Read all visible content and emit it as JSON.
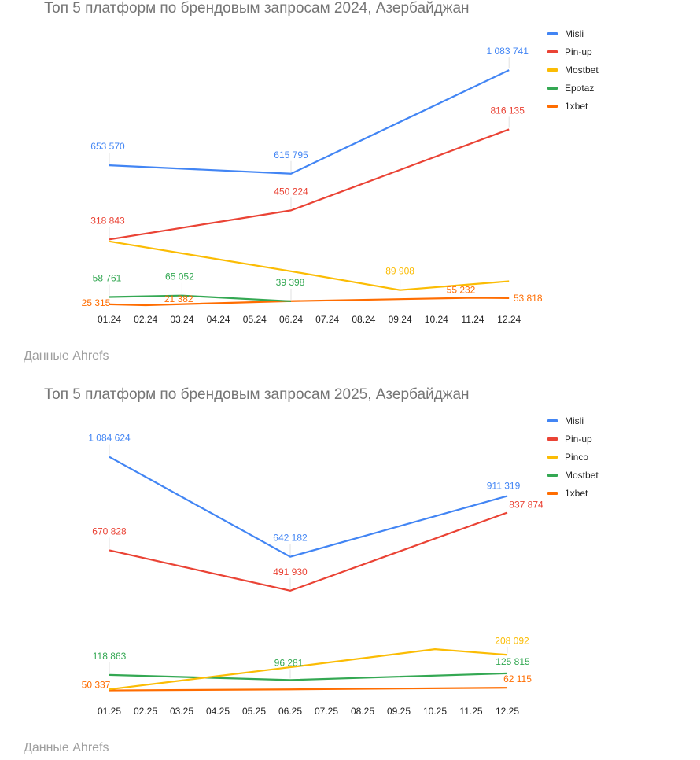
{
  "charts": [
    {
      "title": "Топ 5 платформ по брендовым запросам 2024, Азербайджан",
      "source": "Данные Ahrefs",
      "legend": [
        {
          "label": "Misli",
          "color": "#4285f4"
        },
        {
          "label": "Pin-up",
          "color": "#ea4335"
        },
        {
          "label": "Mostbet",
          "color": "#fbbc04"
        },
        {
          "label": "Epotaz",
          "color": "#34a853"
        },
        {
          "label": "1xbet",
          "color": "#ff6d01"
        }
      ],
      "x_ticks": [
        "01.24",
        "02.24",
        "03.24",
        "04.24",
        "05.24",
        "06.24",
        "07.24",
        "08.24",
        "09.24",
        "10.24",
        "11.24",
        "12.24"
      ]
    },
    {
      "title": "Топ 5 платформ по брендовым запросам 2025, Азербайджан",
      "source": "Данные Ahrefs",
      "legend": [
        {
          "label": "Misli",
          "color": "#4285f4"
        },
        {
          "label": "Pin-up",
          "color": "#ea4335"
        },
        {
          "label": "Pinco",
          "color": "#fbbc04"
        },
        {
          "label": "Mostbet",
          "color": "#34a853"
        },
        {
          "label": "1xbet",
          "color": "#ff6d01"
        }
      ],
      "x_ticks": [
        "01.25",
        "02.25",
        "03.25",
        "04.25",
        "05.25",
        "06.25",
        "07.25",
        "08.25",
        "09.25",
        "10.25",
        "11.25",
        "12.25"
      ]
    }
  ],
  "chart_data": [
    {
      "type": "line",
      "title": "Топ 5 платформ по брендовым запросам 2024, Азербайджан",
      "xlabel": "",
      "ylabel": "",
      "categories": [
        "01.24",
        "02.24",
        "03.24",
        "04.24",
        "05.24",
        "06.24",
        "07.24",
        "08.24",
        "09.24",
        "10.24",
        "11.24",
        "12.24"
      ],
      "grid": false,
      "legend_position": "right-top",
      "ylim": [
        0,
        1100000
      ],
      "series": [
        {
          "name": "Misli",
          "color": "#4285f4",
          "points": [
            [
              0,
              653570
            ],
            [
              5,
              615795
            ],
            [
              11,
              1083741
            ]
          ],
          "labels": [
            [
              0,
              "653 570"
            ],
            [
              5,
              "615 795"
            ],
            [
              11,
              "1 083 741"
            ]
          ]
        },
        {
          "name": "Pin-up",
          "color": "#ea4335",
          "points": [
            [
              0,
              318843
            ],
            [
              5,
              450224
            ],
            [
              11,
              816135
            ]
          ],
          "labels": [
            [
              0,
              "318 843"
            ],
            [
              5,
              "450 224"
            ],
            [
              11,
              "816 135"
            ]
          ]
        },
        {
          "name": "Mostbet",
          "color": "#fbbc04",
          "points": [
            [
              0,
              310000
            ],
            [
              5,
              175000
            ],
            [
              8,
              89908
            ],
            [
              11,
              130000
            ]
          ],
          "labels": [
            [
              8,
              "89 908"
            ]
          ]
        },
        {
          "name": "Epotaz",
          "color": "#34a853",
          "points": [
            [
              0,
              58761
            ],
            [
              2,
              65052
            ],
            [
              5,
              39398
            ]
          ],
          "labels": [
            [
              0,
              "58 761"
            ],
            [
              2,
              "65 052"
            ],
            [
              5,
              "39 398"
            ]
          ]
        },
        {
          "name": "1xbet",
          "color": "#ff6d01",
          "points": [
            [
              0,
              25315
            ],
            [
              1,
              21382
            ],
            [
              5,
              40000
            ],
            [
              10,
              55232
            ],
            [
              11,
              53818
            ]
          ],
          "labels": [
            [
              0,
              "25 315"
            ],
            [
              1,
              "21 382"
            ],
            [
              10,
              "55 232"
            ],
            [
              11,
              "53 818"
            ]
          ]
        }
      ],
      "source": "Данные Ahrefs"
    },
    {
      "type": "line",
      "title": "Топ 5 платформ по брендовым запросам 2025, Азербайджан",
      "xlabel": "",
      "ylabel": "",
      "categories": [
        "01.25",
        "02.25",
        "03.25",
        "04.25",
        "05.25",
        "06.25",
        "07.25",
        "08.25",
        "09.25",
        "10.25",
        "11.25",
        "12.25"
      ],
      "grid": false,
      "legend_position": "right-top",
      "ylim": [
        0,
        1100000
      ],
      "series": [
        {
          "name": "Misli",
          "color": "#4285f4",
          "points": [
            [
              0,
              1084624
            ],
            [
              5,
              642182
            ],
            [
              11,
              911319
            ]
          ],
          "labels": [
            [
              0,
              "1 084 624"
            ],
            [
              5,
              "642 182"
            ],
            [
              11,
              "911 319"
            ]
          ]
        },
        {
          "name": "Pin-up",
          "color": "#ea4335",
          "points": [
            [
              0,
              670828
            ],
            [
              5,
              491930
            ],
            [
              11,
              837874
            ]
          ],
          "labels": [
            [
              0,
              "670 828"
            ],
            [
              5,
              "491 930"
            ],
            [
              11,
              "837 874"
            ]
          ]
        },
        {
          "name": "Pinco",
          "color": "#fbbc04",
          "points": [
            [
              0,
              55000
            ],
            [
              5,
              153000
            ],
            [
              9,
              233000
            ],
            [
              11,
              208092
            ]
          ],
          "labels": [
            [
              11,
              "208 092"
            ]
          ]
        },
        {
          "name": "Mostbet",
          "color": "#34a853",
          "points": [
            [
              0,
              118863
            ],
            [
              5,
              96281
            ],
            [
              11,
              125815
            ]
          ],
          "labels": [
            [
              0,
              "118 863"
            ],
            [
              5,
              "96 281"
            ],
            [
              11,
              "125 815"
            ]
          ]
        },
        {
          "name": "1xbet",
          "color": "#ff6d01",
          "points": [
            [
              0,
              50337
            ],
            [
              5,
              55000
            ],
            [
              11,
              62115
            ]
          ],
          "labels": [
            [
              0,
              "50 337"
            ],
            [
              11,
              "62 115"
            ]
          ]
        }
      ],
      "source": "Данные Ahrefs"
    }
  ]
}
